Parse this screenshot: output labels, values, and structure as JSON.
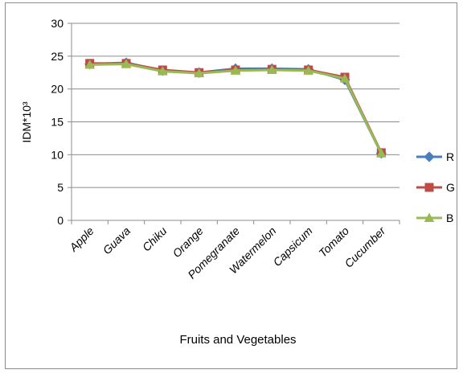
{
  "chart_data": {
    "type": "line",
    "title": "",
    "xlabel": "Fruits and Vegetables",
    "ylabel": "IDM*10³",
    "ylim": [
      0,
      30
    ],
    "yticks": [
      0,
      5,
      10,
      15,
      20,
      25,
      30
    ],
    "grid": true,
    "legend_position": "right",
    "categories": [
      "Apple",
      "Guava",
      "Chiku",
      "Orange",
      "Pomegranate",
      "Watermelon",
      "Capsicum",
      "Tomato",
      "Cucumber"
    ],
    "series": [
      {
        "name": "R",
        "color": "#4a7ebb",
        "marker": "diamond",
        "values": [
          23.8,
          24.0,
          22.8,
          22.5,
          23.1,
          23.1,
          23.0,
          21.4,
          10.2
        ]
      },
      {
        "name": "G",
        "color": "#be4b48",
        "marker": "square",
        "values": [
          23.9,
          23.9,
          22.9,
          22.5,
          22.9,
          23.0,
          22.9,
          21.8,
          10.3
        ]
      },
      {
        "name": "B",
        "color": "#98b954",
        "marker": "triangle",
        "values": [
          23.7,
          23.8,
          22.7,
          22.4,
          22.8,
          22.9,
          22.8,
          21.6,
          10.2
        ]
      }
    ]
  }
}
